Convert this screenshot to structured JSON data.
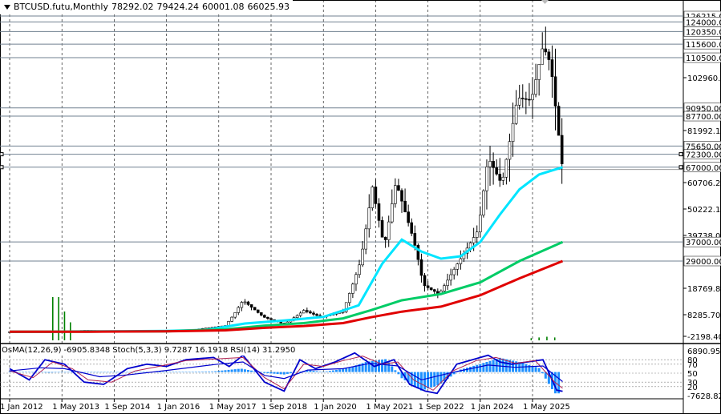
{
  "window": {
    "symbol_period": "BTCUSD.futu,Monthly",
    "open": "78292.02",
    "high": "79424.24",
    "low": "60001.08",
    "close": "66025.93"
  },
  "indicator": {
    "osma": "OsMA(12,26,9)",
    "osma_value": "-6905.8348",
    "stoch": "Stoch(5,3,3)",
    "stoch_values": "9.7287 16.1918",
    "rsi": "RSI(14)",
    "rsi_value": "31.2950"
  },
  "chart_data": [
    {
      "type": "line",
      "title": "BTCUSD.futu,Monthly",
      "x_ticks": [
        "1 Jan 2012",
        "1 May 2013",
        "1 Sep 2014",
        "1 Jan 2016",
        "1 May 2017",
        "1 Sep 2018",
        "1 Jan 2020",
        "1 May 2021",
        "1 Sep 2022",
        "1 Jan 2024",
        "1 May 2025"
      ],
      "y_axis_ticks": [
        "102960.30",
        "81992.15",
        "60706.26",
        "50222.15",
        "39738.08",
        "18769.80",
        "8285.70",
        "-2198.40"
      ],
      "level_lines": [
        "126215.00",
        "124000.00",
        "120350.00",
        "115600.00",
        "110500.00",
        "90950.00",
        "87700.00",
        "75650.00",
        "72300.00",
        "67000.00",
        "37000.00",
        "29000.00"
      ],
      "ylim": [
        -2198.4,
        126215
      ],
      "colors": {
        "candles": "#000000",
        "ema_fast": "#00e5ff",
        "ema_mid": "#00cc66",
        "ema_slow": "#e00000",
        "levels": "#708090"
      },
      "series": [
        {
          "values": [
            [
              2012,
              5
            ],
            [
              2013.3,
              100
            ],
            [
              2013.9,
              700
            ],
            [
              2014.5,
              500
            ],
            [
              2015.5,
              300
            ],
            [
              2016.5,
              600
            ],
            [
              2017.5,
              3000
            ],
            [
              2017.95,
              14000
            ],
            [
              2018.5,
              7000
            ],
            [
              2019.0,
              3700
            ],
            [
              2019.5,
              10000
            ],
            [
              2019.95,
              7200
            ],
            [
              2020.5,
              9500
            ],
            [
              2020.95,
              29000
            ],
            [
              2021.25,
              59000
            ],
            [
              2021.55,
              35000
            ],
            [
              2021.85,
              61000
            ],
            [
              2022.3,
              38000
            ],
            [
              2022.55,
              20000
            ],
            [
              2022.95,
              16500
            ],
            [
              2023.5,
              30000
            ],
            [
              2023.95,
              42000
            ],
            [
              2024.2,
              71000
            ],
            [
              2024.55,
              60000
            ],
            [
              2024.95,
              95000
            ],
            [
              2025.3,
              94000
            ],
            [
              2025.6,
              115000
            ],
            [
              2025.8,
              108000
            ],
            [
              2025.95,
              87000
            ],
            [
              2026.1,
              66025.93
            ]
          ]
        },
        {
          "values": [
            [
              2012,
              5
            ],
            [
              2013,
              50
            ],
            [
              2014,
              200
            ],
            [
              2015,
              300
            ],
            [
              2016,
              420
            ],
            [
              2017,
              900
            ],
            [
              2018,
              4000
            ],
            [
              2019,
              5500
            ],
            [
              2020,
              7200
            ],
            [
              2020.9,
              12000
            ],
            [
              2021.5,
              28000
            ],
            [
              2022,
              38000
            ],
            [
              2022.5,
              33000
            ],
            [
              2023,
              30000
            ],
            [
              2023.5,
              31000
            ],
            [
              2024,
              37000
            ],
            [
              2024.5,
              48000
            ],
            [
              2025,
              58000
            ],
            [
              2025.5,
              64000
            ],
            [
              2026.1,
              67000
            ]
          ]
        },
        {
          "values": [
            [
              2012,
              5
            ],
            [
              2014,
              80
            ],
            [
              2016,
              250
            ],
            [
              2017.5,
              1200
            ],
            [
              2018.5,
              3000
            ],
            [
              2019.5,
              4200
            ],
            [
              2020.5,
              6500
            ],
            [
              2021.2,
              10000
            ],
            [
              2022,
              14000
            ],
            [
              2023,
              16500
            ],
            [
              2024,
              21000
            ],
            [
              2025,
              29000
            ],
            [
              2026.1,
              37000
            ]
          ]
        },
        {
          "values": [
            [
              2012,
              5
            ],
            [
              2014,
              60
            ],
            [
              2016,
              200
            ],
            [
              2017.5,
              700
            ],
            [
              2018.5,
              1900
            ],
            [
              2019.5,
              2800
            ],
            [
              2020.5,
              4200
            ],
            [
              2021.2,
              7000
            ],
            [
              2022,
              9500
            ],
            [
              2023,
              11500
            ],
            [
              2024,
              16000
            ],
            [
              2025,
              22500
            ],
            [
              2026.1,
              29000
            ]
          ]
        }
      ]
    },
    {
      "type": "bar",
      "title": "OsMA(12,26,9) -6905.8348 Stoch(5,3,3) 9.7287 16.1918 RSI(14) 31.2950",
      "y_axis_ticks": [
        "6890.9519",
        "80",
        "70",
        "50",
        "30",
        "20",
        "-7628.8246"
      ],
      "ylim": [
        -7628.8246,
        6890.9519
      ],
      "colors": {
        "osma": "#1e90ff",
        "stoch_main": "#0000cd",
        "stoch_signal": "#b02050",
        "rsi": "#0000cd",
        "levels": "#808080"
      },
      "series": [
        {
          "values": [
            [
              2012,
              50
            ],
            [
              2012.5,
              20
            ],
            [
              2013,
              -200
            ],
            [
              2013.5,
              30
            ],
            [
              2014,
              -100
            ],
            [
              2015,
              0
            ],
            [
              2016,
              50
            ],
            [
              2017.2,
              200
            ],
            [
              2017.9,
              1100
            ],
            [
              2018.5,
              -300
            ],
            [
              2019,
              -800
            ],
            [
              2019.6,
              600
            ],
            [
              2020,
              50
            ],
            [
              2020.6,
              1200
            ],
            [
              2021.1,
              3300
            ],
            [
              2021.6,
              4200
            ],
            [
              2022,
              -2000
            ],
            [
              2022.5,
              -6000
            ],
            [
              2022.95,
              -4200
            ],
            [
              2023.5,
              800
            ],
            [
              2024,
              2600
            ],
            [
              2024.5,
              4600
            ],
            [
              2025,
              3200
            ],
            [
              2025.5,
              1300
            ],
            [
              2025.9,
              -6905.8348
            ]
          ]
        },
        {
          "values": [
            [
              2012,
              60
            ],
            [
              2012.5,
              35
            ],
            [
              2012.9,
              80
            ],
            [
              2013.4,
              70
            ],
            [
              2013.9,
              30
            ],
            [
              2014.4,
              25
            ],
            [
              2015,
              60
            ],
            [
              2015.5,
              70
            ],
            [
              2016,
              65
            ],
            [
              2016.5,
              80
            ],
            [
              2017.2,
              85
            ],
            [
              2017.6,
              65
            ],
            [
              2017.95,
              90
            ],
            [
              2018.5,
              30
            ],
            [
              2019,
              10
            ],
            [
              2019.4,
              80
            ],
            [
              2019.8,
              60
            ],
            [
              2020.3,
              75
            ],
            [
              2020.8,
              95
            ],
            [
              2021.3,
              65
            ],
            [
              2021.8,
              80
            ],
            [
              2022.2,
              25
            ],
            [
              2022.6,
              10
            ],
            [
              2022.9,
              5
            ],
            [
              2023.4,
              70
            ],
            [
              2023.8,
              80
            ],
            [
              2024.2,
              90
            ],
            [
              2024.5,
              75
            ],
            [
              2024.8,
              70
            ],
            [
              2025.2,
              75
            ],
            [
              2025.6,
              80
            ],
            [
              2025.95,
              12
            ],
            [
              2026.1,
              9.73
            ]
          ]
        },
        {
          "values": [
            [
              2012,
              55
            ],
            [
              2012.6,
              40
            ],
            [
              2013.1,
              75
            ],
            [
              2013.6,
              60
            ],
            [
              2014,
              35
            ],
            [
              2014.6,
              30
            ],
            [
              2015.2,
              55
            ],
            [
              2015.8,
              65
            ],
            [
              2016.5,
              78
            ],
            [
              2017.3,
              82
            ],
            [
              2017.95,
              85
            ],
            [
              2018.5,
              40
            ],
            [
              2019,
              15
            ],
            [
              2019.5,
              70
            ],
            [
              2020,
              65
            ],
            [
              2020.5,
              78
            ],
            [
              2021,
              88
            ],
            [
              2021.5,
              70
            ],
            [
              2021.9,
              75
            ],
            [
              2022.3,
              35
            ],
            [
              2022.8,
              12
            ],
            [
              2023.3,
              55
            ],
            [
              2023.9,
              78
            ],
            [
              2024.4,
              85
            ],
            [
              2024.9,
              72
            ],
            [
              2025.4,
              78
            ],
            [
              2025.9,
              30
            ],
            [
              2026.1,
              16.19
            ]
          ]
        },
        {
          "values": [
            [
              2012,
              55
            ],
            [
              2012.8,
              62
            ],
            [
              2013.4,
              60
            ],
            [
              2014.3,
              42
            ],
            [
              2015,
              46
            ],
            [
              2016,
              56
            ],
            [
              2017.3,
              70
            ],
            [
              2017.95,
              75
            ],
            [
              2018.5,
              45
            ],
            [
              2019,
              38
            ],
            [
              2019.6,
              57
            ],
            [
              2020.5,
              60
            ],
            [
              2021.2,
              72
            ],
            [
              2021.9,
              66
            ],
            [
              2022.5,
              35
            ],
            [
              2023.3,
              52
            ],
            [
              2024.2,
              68
            ],
            [
              2024.9,
              63
            ],
            [
              2025.6,
              66
            ],
            [
              2026.1,
              31.3
            ]
          ]
        }
      ]
    }
  ]
}
